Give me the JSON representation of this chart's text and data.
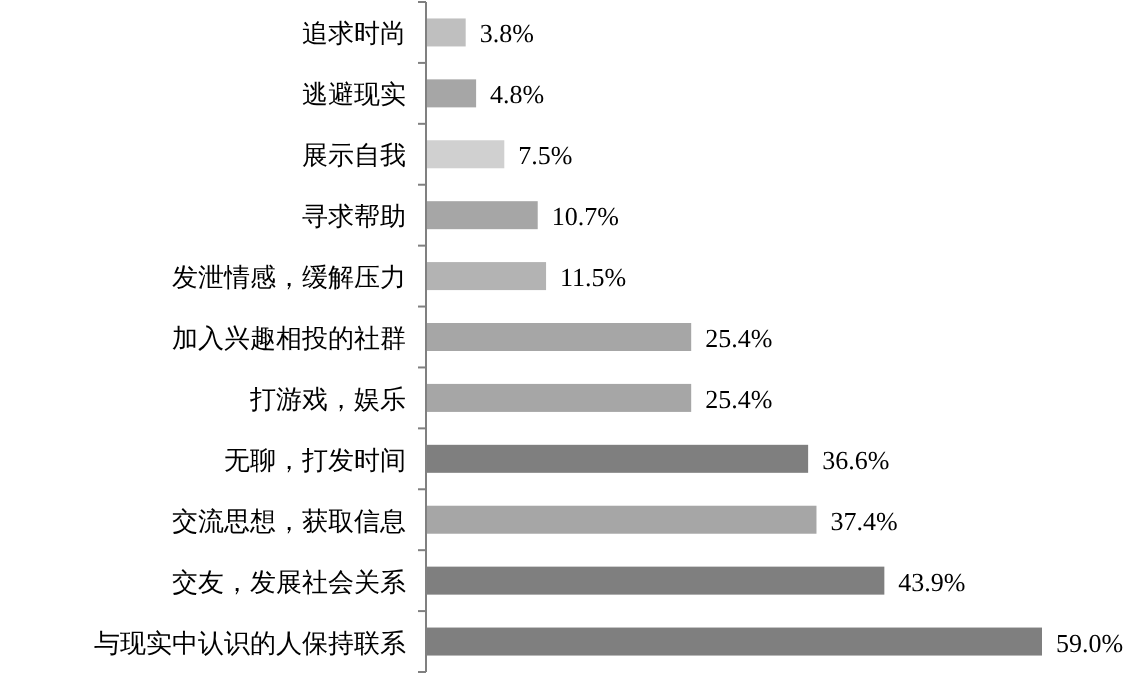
{
  "chart_data": {
    "type": "bar",
    "orientation": "horizontal",
    "relative": false,
    "categories": [
      "追求时尚",
      "逃避现实",
      "展示自我",
      "寻求帮助",
      "发泄情感，缓解压力",
      "加入兴趣相投的社群",
      "打游戏，娱乐",
      "无聊，打发时间",
      "交流思想，获取信息",
      "交友，发展社会关系",
      "与现实中认识的人保持联系"
    ],
    "values": [
      3.8,
      4.8,
      7.5,
      10.7,
      11.5,
      25.4,
      25.4,
      36.6,
      37.4,
      43.9,
      59.0
    ],
    "value_labels": [
      "3.8%",
      "4.8%",
      "7.5%",
      "10.7%",
      "11.5%",
      "25.4%",
      "25.4%",
      "36.6%",
      "37.4%",
      "43.9%",
      "59.0%"
    ],
    "colors": [
      "#bfbfbf",
      "#a6a6a6",
      "#d0d0d0",
      "#a6a6a6",
      "#b3b3b3",
      "#a6a6a6",
      "#a6a6a6",
      "#7f7f7f",
      "#a6a6a6",
      "#7f7f7f",
      "#7f7f7f"
    ]
  }
}
